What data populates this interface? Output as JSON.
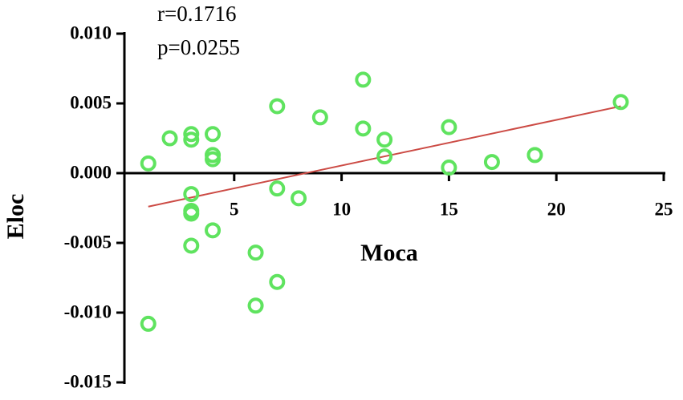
{
  "chart_data": {
    "type": "scatter",
    "xlabel": "Moca",
    "ylabel": "Eloc",
    "annotations": [
      "r=0.1716",
      "p=0.0255"
    ],
    "x": [
      1,
      1,
      2,
      3,
      3,
      3,
      3,
      3,
      3,
      4,
      4,
      4,
      4,
      6,
      6,
      7,
      7,
      7,
      8,
      9,
      11,
      11,
      12,
      12,
      15,
      15,
      17,
      19,
      23
    ],
    "y": [
      0.0007,
      -0.0108,
      0.0025,
      0.0028,
      0.0024,
      -0.0015,
      -0.0027,
      -0.0029,
      -0.0052,
      0.0028,
      0.0013,
      0.001,
      -0.0041,
      -0.0057,
      -0.0095,
      0.0048,
      -0.0011,
      -0.0078,
      -0.0018,
      0.004,
      0.0067,
      0.0032,
      0.0024,
      0.0012,
      0.0033,
      0.0004,
      0.0008,
      0.0013,
      0.0051
    ],
    "color": "#5fe35f",
    "trendline": {
      "x": [
        1,
        23
      ],
      "y": [
        -0.0024,
        0.0048
      ],
      "color": "#cc4b45"
    },
    "xlim": [
      0,
      25
    ],
    "xticks": [
      5,
      10,
      15,
      20,
      25
    ],
    "ylim": [
      -0.015,
      0.01
    ],
    "yticks": [
      {
        "value": -0.015,
        "label": "-0.015"
      },
      {
        "value": -0.01,
        "label": "-0.010"
      },
      {
        "value": -0.005,
        "label": "-0.005"
      },
      {
        "value": 0,
        "label": "0.000"
      },
      {
        "value": 0.005,
        "label": "0.005"
      },
      {
        "value": 0.01,
        "label": "0.010"
      }
    ]
  }
}
